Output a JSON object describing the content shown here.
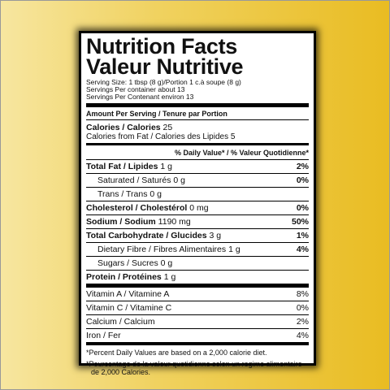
{
  "label": {
    "title": "Nutrition Facts",
    "title_fr": "Valeur Nutritive",
    "serving": [
      "Serving Size: 1 tbsp (8 g)/Portion 1 c.à soupe (8 g)",
      "Servings Per container about 13",
      "Servings Per Contenant environ 13"
    ],
    "amount_header": "Amount Per Serving / Tenure par Portion",
    "calories": {
      "label": "Calories / Calories",
      "amount": "25"
    },
    "calories_fat": "Calories from Fat / Calories des Lipides 5",
    "dv_header": "% Daily Value* / % Valeur Quotidienne*",
    "nutrients": [
      {
        "label": "Total Fat / Lipides",
        "amount": "1 g",
        "dv": "2%"
      },
      {
        "label": "Saturated / Saturés",
        "amount": "0 g",
        "dv": "0%"
      },
      {
        "label": "Trans / Trans",
        "amount": "0 g"
      },
      {
        "label": "Cholesterol / Cholestérol",
        "amount": "0 mg",
        "dv": "0%"
      },
      {
        "label": "Sodium / Sodium",
        "amount": "1190 mg",
        "dv": "50%"
      },
      {
        "label": "Total Carbohydrate / Glucides",
        "amount": "3 g",
        "dv": "1%"
      },
      {
        "label": "Dietary Fibre / Fibres Alimentaires",
        "amount": "1 g",
        "dv": "4%"
      },
      {
        "label": "Sugars / Sucres",
        "amount": "0 g"
      },
      {
        "label": "Protein / Protéines",
        "amount": "1 g"
      }
    ],
    "vitamins": [
      {
        "label": "Vitamin A / Vitamine A",
        "dv": "8%"
      },
      {
        "label": "Vitamin C / Vitamine C",
        "dv": "0%"
      },
      {
        "label": "Calcium / Calcium",
        "dv": "2%"
      },
      {
        "label": "Iron / Fer",
        "dv": "4%"
      }
    ],
    "footnotes": [
      "*Percent Daily Values are based on a 2,000 calorie diet.",
      "*Pourcentage de la valeur quotidienne selon un regime alimentaire de 2,000 Calories."
    ]
  }
}
